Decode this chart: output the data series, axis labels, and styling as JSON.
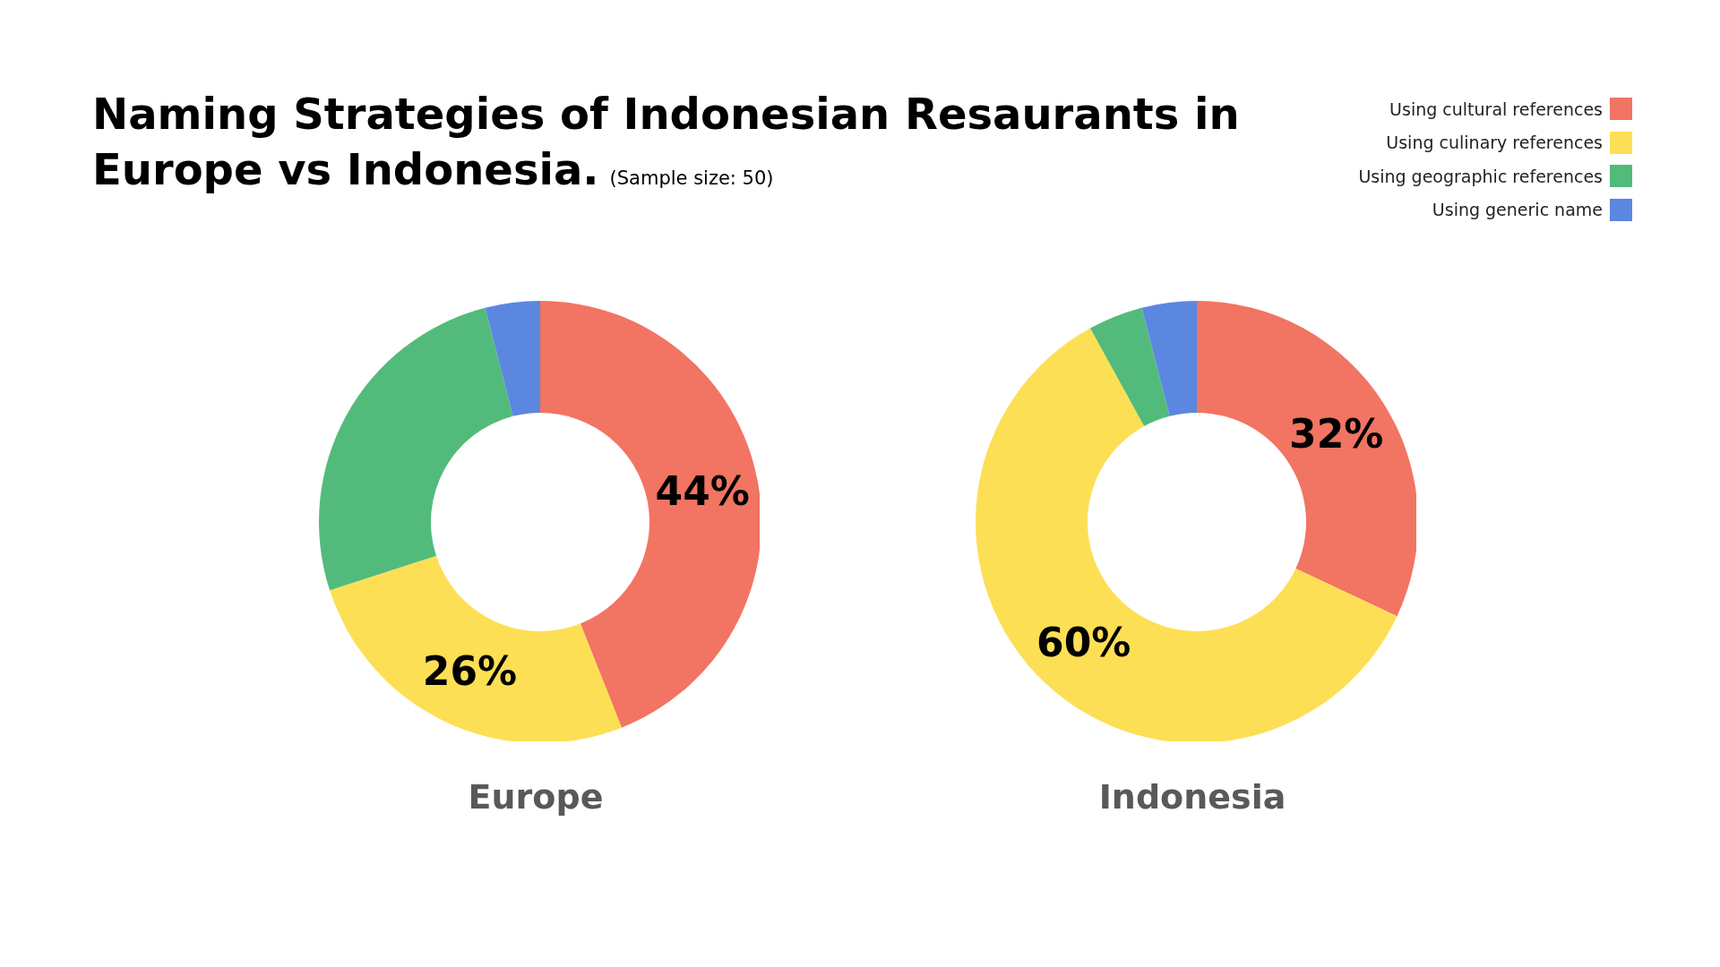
{
  "chart_data": [
    {
      "type": "donut",
      "title": "Naming Strategies of Indonesian Resaurants in Europe vs Indonesia.",
      "subtitle": "(Sample size: 50)",
      "xlabel": "Europe",
      "categories": [
        "Using cultural references",
        "Using culinary references",
        "Using geographic references",
        "Using generic name"
      ],
      "values": [
        44,
        26,
        26,
        4
      ],
      "value_labels": [
        "44%",
        "26%",
        null,
        null
      ],
      "colors": [
        "#f27462",
        "#fddf55",
        "#52bb7b",
        "#5b87e0"
      ],
      "legend": "top right"
    },
    {
      "type": "donut",
      "xlabel": "Indonesia",
      "categories": [
        null,
        null,
        null,
        null
      ],
      "values": [
        32,
        60,
        4,
        4
      ],
      "value_labels": [
        "32%",
        "60%",
        null,
        null
      ],
      "colors": [
        "#f27462",
        "#fddf55",
        "#52bb7b",
        "#5b87e0"
      ]
    }
  ]
}
